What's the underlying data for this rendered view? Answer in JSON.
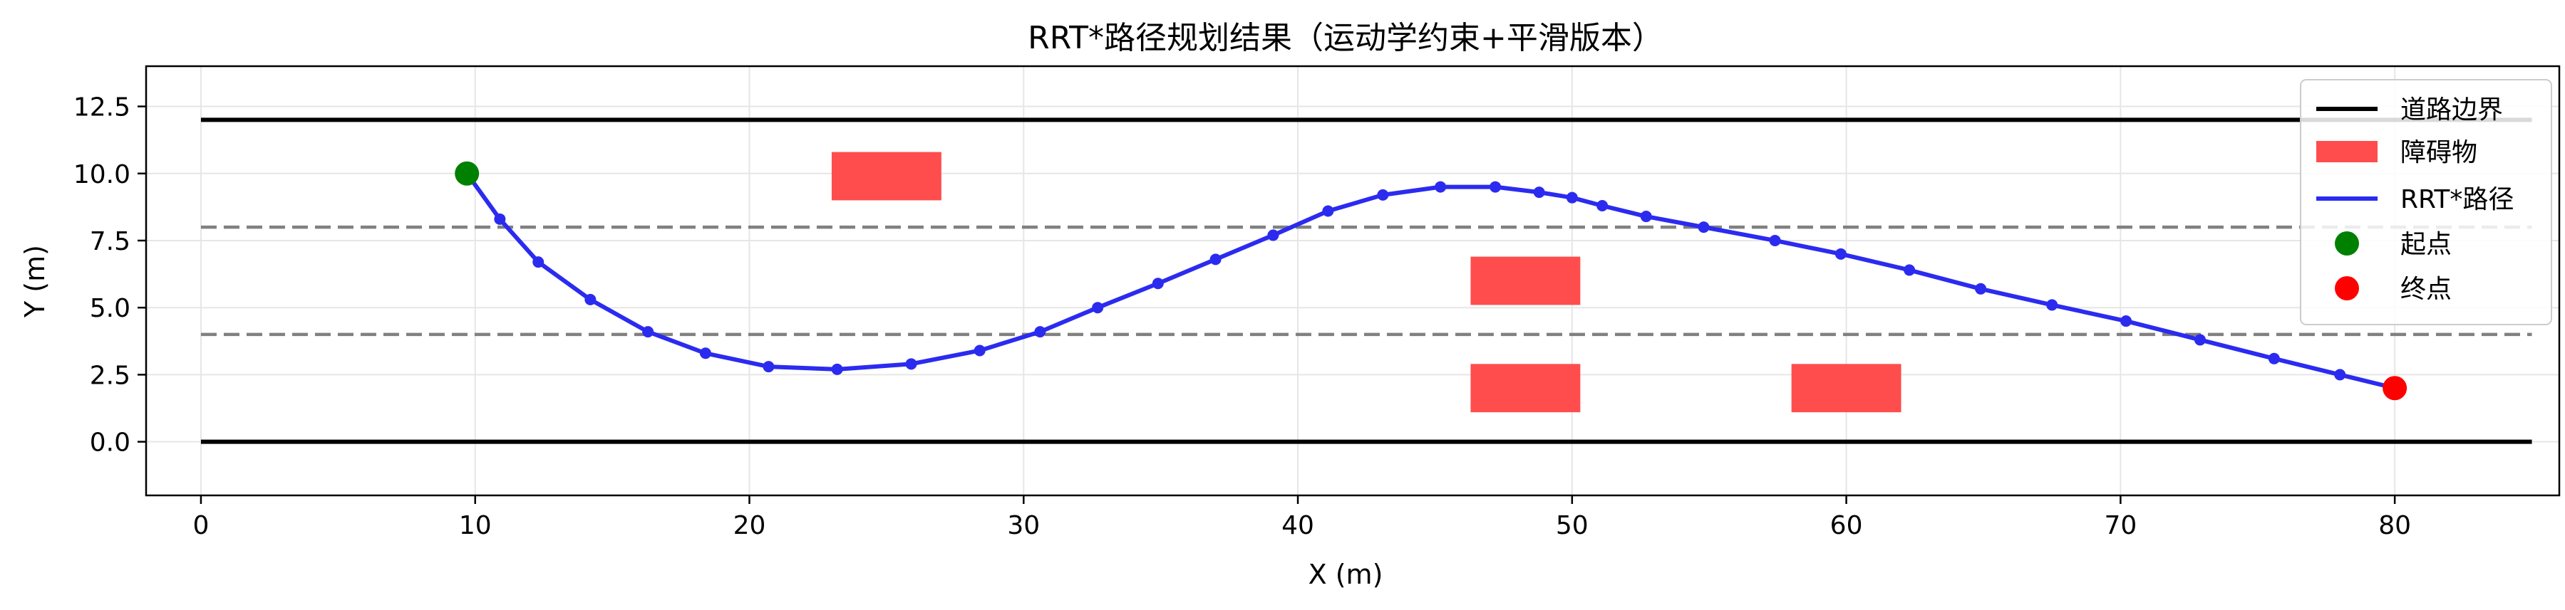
{
  "chart_data": {
    "type": "line",
    "title": "RRT*路径规划结果（运动学约束+平滑版本）",
    "xlabel": "X (m)",
    "ylabel": "Y (m)",
    "xlim": [
      -2,
      86
    ],
    "ylim": [
      -2,
      14
    ],
    "xticks": [
      0,
      10,
      20,
      30,
      40,
      50,
      60,
      70,
      80
    ],
    "yticks": [
      0.0,
      2.5,
      5.0,
      7.5,
      10.0,
      12.5
    ],
    "xtick_labels": [
      "0",
      "10",
      "20",
      "30",
      "40",
      "50",
      "60",
      "70",
      "80"
    ],
    "ytick_labels": [
      "0.0",
      "2.5",
      "5.0",
      "7.5",
      "10.0",
      "12.5"
    ],
    "grid": true,
    "legend_position": "top-right",
    "colors": {
      "road": "#000000",
      "lane": "#808080",
      "obstacle": "#ff4d4d",
      "path": "#2b2bf0",
      "start": "#008000",
      "end": "#ff0000"
    },
    "road_boundaries": [
      {
        "x": [
          0,
          85
        ],
        "y": [
          0,
          0
        ]
      },
      {
        "x": [
          0,
          85
        ],
        "y": [
          12,
          12
        ]
      }
    ],
    "lane_lines": [
      {
        "x": [
          0,
          85
        ],
        "y": [
          4,
          4
        ]
      },
      {
        "x": [
          0,
          85
        ],
        "y": [
          8,
          8
        ]
      }
    ],
    "obstacles": [
      {
        "x": 23,
        "y": 9.0,
        "w": 4,
        "h": 1.8
      },
      {
        "x": 46.3,
        "y": 5.1,
        "w": 4,
        "h": 1.8
      },
      {
        "x": 46.3,
        "y": 1.1,
        "w": 4,
        "h": 1.8
      },
      {
        "x": 58,
        "y": 1.1,
        "w": 4,
        "h": 1.8
      }
    ],
    "path": {
      "x": [
        9.7,
        10.9,
        12.3,
        14.2,
        16.3,
        18.4,
        20.7,
        23.2,
        25.9,
        28.4,
        30.6,
        32.7,
        34.9,
        37.0,
        39.1,
        41.1,
        43.1,
        45.2,
        47.2,
        48.8,
        50.0,
        51.1,
        52.7,
        54.8,
        57.4,
        59.8,
        62.3,
        64.9,
        67.5,
        70.2,
        72.9,
        75.6,
        78.0,
        80.0
      ],
      "y": [
        10.0,
        8.3,
        6.7,
        5.3,
        4.1,
        3.3,
        2.8,
        2.7,
        2.9,
        3.4,
        4.1,
        5.0,
        5.9,
        6.8,
        7.7,
        8.6,
        9.2,
        9.5,
        9.5,
        9.3,
        9.1,
        8.8,
        8.4,
        8.0,
        7.5,
        7.0,
        6.4,
        5.7,
        5.1,
        4.5,
        3.8,
        3.1,
        2.5,
        2.0
      ]
    },
    "start": {
      "x": 9.7,
      "y": 10.0
    },
    "end": {
      "x": 80.0,
      "y": 2.0
    },
    "legend": [
      "道路边界",
      "障碍物",
      "RRT*路径",
      "起点",
      "终点"
    ]
  }
}
